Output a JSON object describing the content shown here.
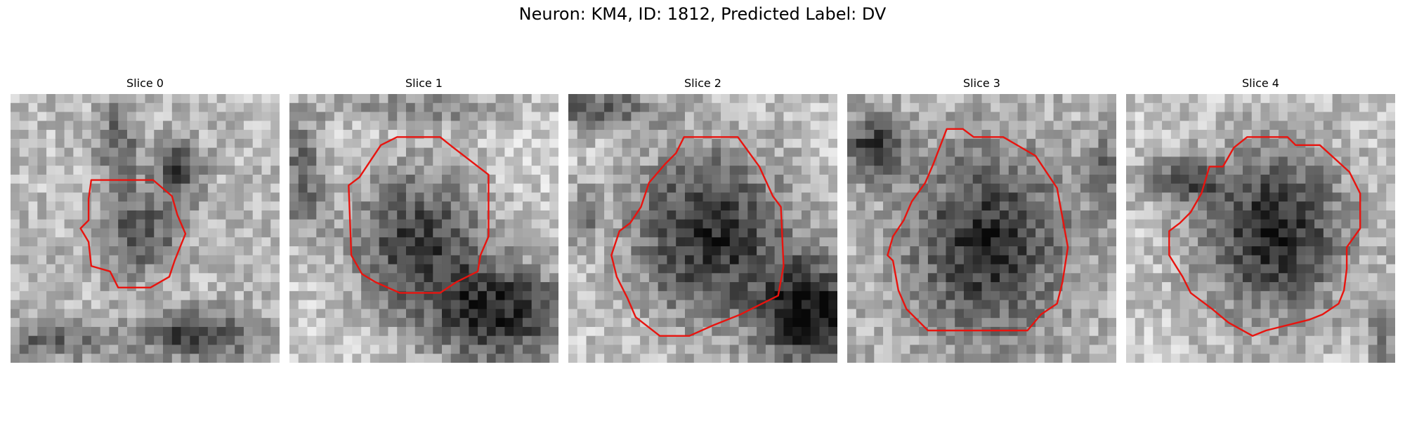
{
  "figure": {
    "title": "Neuron: KM4, ID: 1812, Predicted Label: DV"
  },
  "panels": [
    {
      "title": "Slice 0"
    },
    {
      "title": "Slice 1"
    },
    {
      "title": "Slice 2"
    },
    {
      "title": "Slice 3"
    },
    {
      "title": "Slice 4"
    }
  ],
  "colors": {
    "contour": "#e8140f",
    "background": "#ffffff"
  }
}
